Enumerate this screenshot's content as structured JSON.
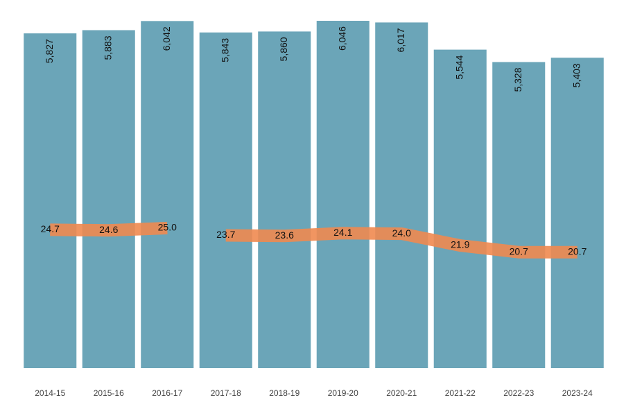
{
  "chart_data": {
    "type": "bar",
    "categories": [
      "2014-15",
      "2015-16",
      "2016-17",
      "2017-18",
      "2018-19",
      "2019-20",
      "2020-21",
      "2021-22",
      "2022-23",
      "2023-24"
    ],
    "ylim": [
      0,
      6046
    ],
    "y2lim": [
      0,
      62
    ],
    "series": [
      {
        "color": "#6ba5b8",
        "values": [
          5827,
          5883,
          6042,
          5843,
          5860,
          6046,
          6017,
          5544,
          5328,
          5403
        ],
        "value_labels": [
          "5,827",
          "5,883",
          "6,042",
          "5,843",
          "5,860",
          "6,046",
          "6,017",
          "5,544",
          "5,328",
          "5,403"
        ]
      },
      {
        "type": "line",
        "axis": "y2",
        "color": "#f08a50",
        "values": [
          24.7,
          24.6,
          25.0,
          null,
          null,
          null,
          null,
          null,
          null,
          null
        ],
        "value_labels": [
          "24.7",
          "24.6",
          "25.0",
          null,
          null,
          null,
          null,
          null,
          null,
          null
        ]
      },
      {
        "type": "line",
        "axis": "y2",
        "color": "#f08a50",
        "values": [
          null,
          null,
          null,
          23.7,
          23.6,
          24.1,
          24.0,
          21.9,
          20.7,
          20.7
        ],
        "value_labels": [
          null,
          null,
          null,
          "23.7",
          "23.6",
          "24.1",
          "24.0",
          "21.9",
          "20.7",
          "20.7"
        ]
      }
    ]
  }
}
